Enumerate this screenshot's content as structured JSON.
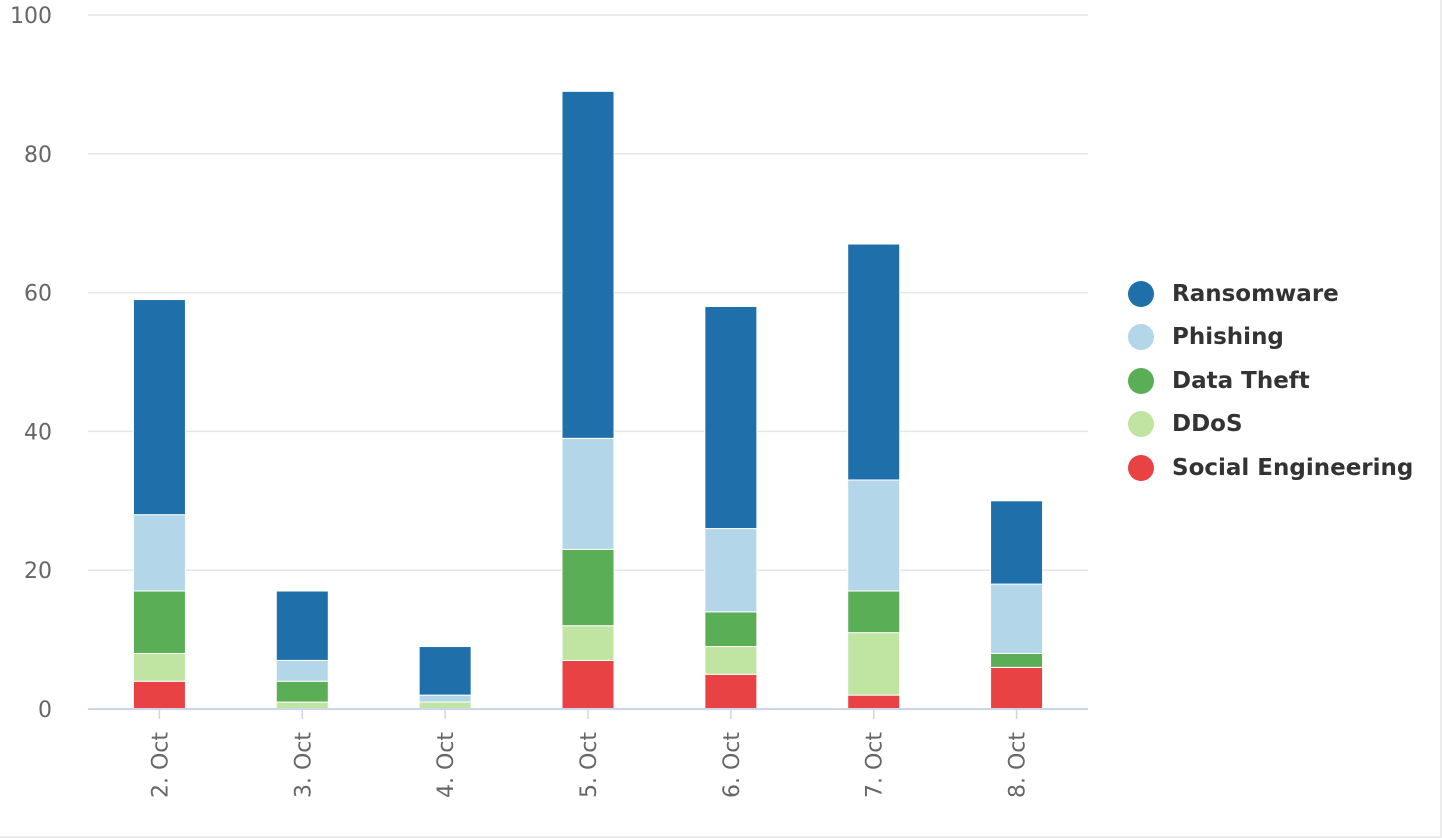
{
  "chart_data": {
    "type": "bar",
    "stacked": true,
    "title": "",
    "xlabel": "",
    "ylabel": "",
    "categories": [
      "2. Oct",
      "3. Oct",
      "4. Oct",
      "5. Oct",
      "6. Oct",
      "7. Oct",
      "8. Oct"
    ],
    "ylim": [
      0,
      100
    ],
    "yticks": [
      0,
      20,
      40,
      60,
      80,
      100
    ],
    "grid": true,
    "legend_position": "right",
    "series": [
      {
        "name": "Ransomware",
        "color": "#1f6fab",
        "values": [
          31,
          10,
          7,
          50,
          32,
          34,
          12
        ]
      },
      {
        "name": "Phishing",
        "color": "#b3d7e8",
        "values": [
          11,
          3,
          1,
          16,
          12,
          16,
          10
        ]
      },
      {
        "name": "Data Theft",
        "color": "#5aae55",
        "values": [
          9,
          3,
          0,
          11,
          5,
          6,
          2
        ]
      },
      {
        "name": "DDoS",
        "color": "#c0e4a2",
        "values": [
          4,
          1,
          1,
          5,
          4,
          9,
          0
        ]
      },
      {
        "name": "Social Engineering",
        "color": "#e84245",
        "values": [
          4,
          0,
          0,
          7,
          5,
          2,
          6
        ]
      }
    ]
  }
}
